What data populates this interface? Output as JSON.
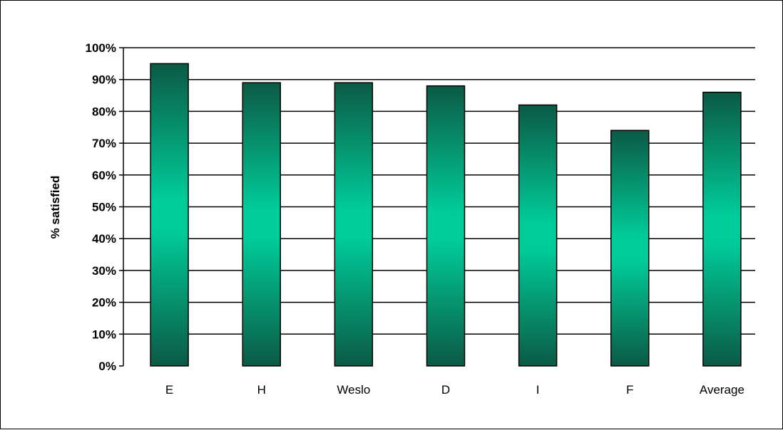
{
  "chart_data": {
    "type": "bar",
    "title": "",
    "xlabel": "",
    "ylabel": "% satisfied",
    "categories": [
      "E",
      "H",
      "Weslo",
      "D",
      "I",
      "F",
      "Average"
    ],
    "values": [
      95,
      89,
      89,
      88,
      82,
      74,
      86
    ],
    "ylim": [
      0,
      100
    ],
    "y_ticks": [
      0,
      10,
      20,
      30,
      40,
      50,
      60,
      70,
      80,
      90,
      100
    ],
    "y_tick_labels": [
      "0%",
      "10%",
      "20%",
      "30%",
      "40%",
      "50%",
      "60%",
      "70%",
      "80%",
      "90%",
      "100%"
    ],
    "grid": true,
    "legend": "none",
    "colors": {
      "bar_edge": "#0b5a45",
      "bar_center": "#00cc99",
      "bar_outline": "#000000",
      "grid": "#000000"
    }
  }
}
